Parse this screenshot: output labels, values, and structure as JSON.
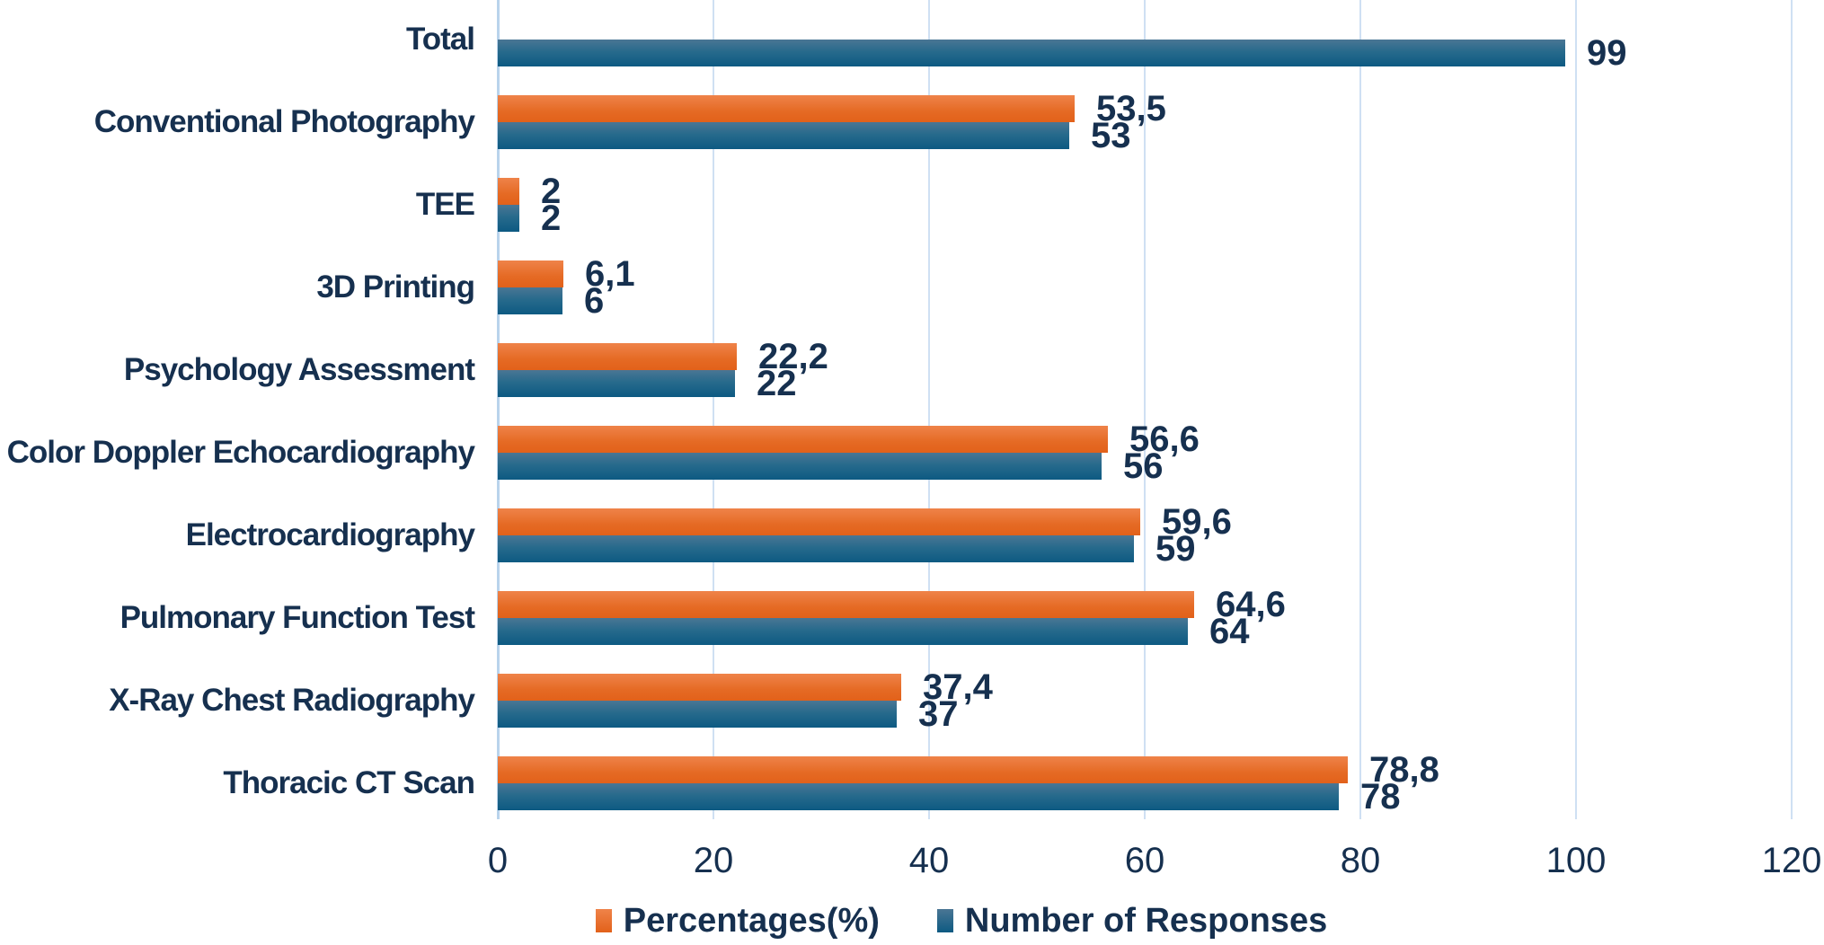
{
  "chart_data": {
    "type": "bar",
    "orientation": "horizontal",
    "title": "",
    "categories": [
      "Total",
      "Conventional Photography",
      "TEE",
      "3D Printing",
      "Psychology Assessment",
      "Color Doppler Echocardiography",
      "Electrocardiography",
      "Pulmonary Function Test",
      "X-Ray Chest Radiography",
      "Thoracic CT Scan"
    ],
    "series": [
      {
        "name": "Percentages(%)",
        "color": "#e8702e",
        "values": [
          null,
          53.5,
          2,
          6.1,
          22.2,
          56.6,
          59.6,
          64.6,
          37.4,
          78.8
        ],
        "display_labels": [
          "",
          "53,5",
          "2",
          "6,1",
          "22,2",
          "56,6",
          "59,6",
          "64,6",
          "37,4",
          "78,8"
        ]
      },
      {
        "name": "Number of Responses",
        "color": "#1d6287",
        "values": [
          99,
          53,
          2,
          6,
          22,
          56,
          59,
          64,
          37,
          78
        ],
        "display_labels": [
          "99",
          "53",
          "2",
          "6",
          "22",
          "56",
          "59",
          "64",
          "37",
          "78"
        ]
      }
    ],
    "x_axis": {
      "ticks": [
        0,
        20,
        40,
        60,
        80,
        100,
        120
      ],
      "range": [
        0,
        120
      ],
      "gridlines": true
    },
    "legend_position": "bottom",
    "decimal_separator": ",",
    "colors": {
      "orange": "#e8702e",
      "blue": "#1d6287",
      "text": "#16304f",
      "gridline": "#cfe0f3"
    }
  }
}
